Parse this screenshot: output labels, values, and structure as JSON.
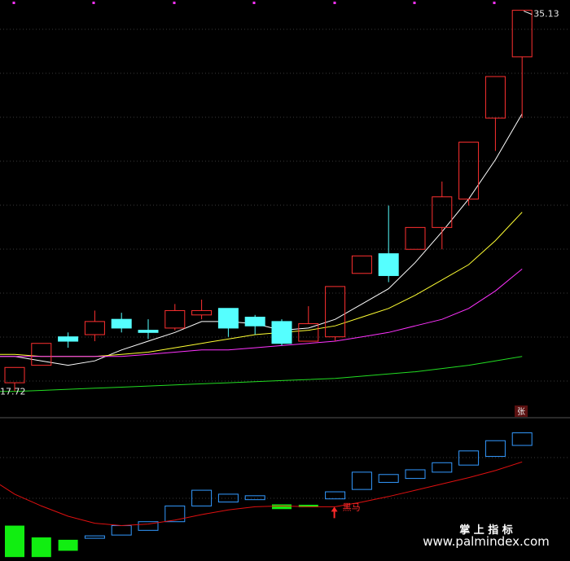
{
  "chart_data": {
    "type": "candlestick",
    "price": {
      "max_label": "35.13",
      "min_label": "17.72",
      "ylim": [
        16.8,
        35.6
      ],
      "candles": [
        {
          "o": 18.1,
          "c": 18.8,
          "h": 18.8,
          "l": 17.72,
          "dir": "up"
        },
        {
          "o": 18.9,
          "c": 19.9,
          "h": 19.9,
          "l": 18.9,
          "dir": "up"
        },
        {
          "o": 20.2,
          "c": 20.0,
          "h": 20.4,
          "l": 19.7,
          "dir": "down"
        },
        {
          "o": 20.3,
          "c": 20.9,
          "h": 21.4,
          "l": 20.0,
          "dir": "up"
        },
        {
          "o": 21.0,
          "c": 20.6,
          "h": 21.3,
          "l": 20.4,
          "dir": "down"
        },
        {
          "o": 20.5,
          "c": 20.4,
          "h": 21.0,
          "l": 20.1,
          "dir": "down"
        },
        {
          "o": 20.6,
          "c": 21.4,
          "h": 21.7,
          "l": 20.5,
          "dir": "up"
        },
        {
          "o": 21.2,
          "c": 21.4,
          "h": 21.9,
          "l": 21.0,
          "dir": "up"
        },
        {
          "o": 21.5,
          "c": 20.6,
          "h": 21.5,
          "l": 20.2,
          "dir": "down"
        },
        {
          "o": 21.1,
          "c": 20.7,
          "h": 21.2,
          "l": 20.3,
          "dir": "down"
        },
        {
          "o": 20.9,
          "c": 19.9,
          "h": 21.0,
          "l": 19.8,
          "dir": "down"
        },
        {
          "o": 20.0,
          "c": 20.8,
          "h": 21.6,
          "l": 20.0,
          "dir": "up"
        },
        {
          "o": 20.2,
          "c": 22.5,
          "h": 22.5,
          "l": 20.0,
          "dir": "up"
        },
        {
          "o": 23.1,
          "c": 23.9,
          "h": 23.9,
          "l": 23.1,
          "dir": "up"
        },
        {
          "o": 24.0,
          "c": 23.0,
          "h": 26.2,
          "l": 22.7,
          "dir": "down"
        },
        {
          "o": 24.2,
          "c": 25.2,
          "h": 25.2,
          "l": 24.2,
          "dir": "up"
        },
        {
          "o": 25.2,
          "c": 26.6,
          "h": 27.3,
          "l": 24.2,
          "dir": "up"
        },
        {
          "o": 26.5,
          "c": 29.1,
          "h": 29.1,
          "l": 26.2,
          "dir": "up"
        },
        {
          "o": 30.2,
          "c": 32.1,
          "h": 32.1,
          "l": 28.7,
          "dir": "up"
        },
        {
          "o": 33.0,
          "c": 35.13,
          "h": 35.13,
          "l": 30.2,
          "dir": "up"
        }
      ],
      "ma_lines": [
        {
          "color": "#ffffff",
          "values": [
            19.3,
            19.1,
            18.9,
            19.1,
            19.6,
            20.0,
            20.4,
            20.9,
            20.9,
            20.8,
            20.5,
            20.6,
            21.0,
            21.7,
            22.4,
            23.6,
            25.0,
            26.5,
            28.3,
            30.4
          ]
        },
        {
          "color": "#ffff33",
          "values": [
            19.4,
            19.3,
            19.3,
            19.3,
            19.4,
            19.5,
            19.7,
            19.9,
            20.1,
            20.3,
            20.4,
            20.5,
            20.7,
            21.1,
            21.5,
            22.1,
            22.8,
            23.5,
            24.6,
            25.9
          ]
        },
        {
          "color": "#ff33ff",
          "values": [
            19.3,
            19.3,
            19.3,
            19.3,
            19.3,
            19.4,
            19.5,
            19.6,
            19.6,
            19.7,
            19.8,
            19.9,
            20.0,
            20.2,
            20.4,
            20.7,
            21.0,
            21.5,
            22.3,
            23.3
          ]
        },
        {
          "color": "#22dd22",
          "values": [
            17.7,
            17.75,
            17.8,
            17.85,
            17.9,
            17.95,
            18.0,
            18.05,
            18.1,
            18.15,
            18.2,
            18.25,
            18.3,
            18.4,
            18.5,
            18.6,
            18.75,
            18.9,
            19.1,
            19.3
          ]
        }
      ]
    },
    "indicator": {
      "ylim": [
        -7.5,
        10.0
      ],
      "bars": [
        {
          "o": -3.0,
          "c": -7.0,
          "style": "solid-green"
        },
        {
          "o": -4.5,
          "c": -7.0,
          "style": "solid-green"
        },
        {
          "o": -4.8,
          "c": -6.2,
          "style": "solid-green"
        },
        {
          "o": -4.3,
          "c": -4.6,
          "style": "outline-blue"
        },
        {
          "o": -3.0,
          "c": -4.2,
          "style": "outline-blue"
        },
        {
          "o": -2.5,
          "c": -3.6,
          "style": "outline-blue"
        },
        {
          "o": -0.5,
          "c": -2.5,
          "style": "outline-blue"
        },
        {
          "o": 1.5,
          "c": -0.5,
          "style": "outline-blue"
        },
        {
          "o": 1.0,
          "c": 0.0,
          "style": "outline-blue"
        },
        {
          "o": 0.8,
          "c": 0.3,
          "style": "outline-blue"
        },
        {
          "o": -0.3,
          "c": -0.9,
          "style": "solid-green"
        },
        {
          "o": -0.35,
          "c": -0.55,
          "style": "solid-green"
        },
        {
          "o": 1.3,
          "c": 0.4,
          "style": "outline-blue"
        },
        {
          "o": 3.8,
          "c": 1.6,
          "style": "outline-blue"
        },
        {
          "o": 3.5,
          "c": 2.5,
          "style": "outline-blue"
        },
        {
          "o": 4.1,
          "c": 3.0,
          "style": "outline-blue"
        },
        {
          "o": 5.0,
          "c": 3.8,
          "style": "outline-blue"
        },
        {
          "o": 6.5,
          "c": 4.7,
          "style": "outline-blue"
        },
        {
          "o": 7.8,
          "c": 5.8,
          "style": "outline-blue"
        },
        {
          "o": 8.8,
          "c": 7.2,
          "style": "outline-blue"
        }
      ],
      "signal_line": {
        "color": "#e01010",
        "values": [
          1.0,
          -0.5,
          -1.8,
          -2.7,
          -3.0,
          -2.8,
          -2.3,
          -1.6,
          -1.0,
          -0.6,
          -0.5,
          -0.6,
          -0.6,
          0.0,
          0.7,
          1.5,
          2.3,
          3.1,
          4.0,
          5.1
        ]
      },
      "signal_text": "黑马",
      "signal_index": 12
    },
    "marker_text": "张"
  },
  "watermark": {
    "title": "掌 上 指 标",
    "url": "www.palmindex.com"
  },
  "colors": {
    "up": "#ff3030",
    "down_fill": "#55ffff",
    "outline_blue": "#3399ff",
    "solid_green": "#11ee11",
    "grid": "#3a3a3a"
  }
}
